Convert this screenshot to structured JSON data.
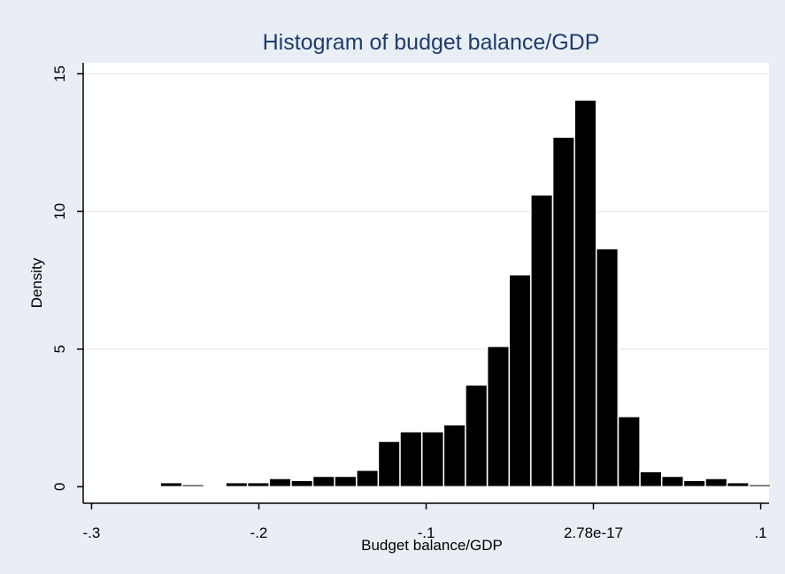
{
  "chart_data": {
    "type": "bar",
    "title": "Histogram of budget balance/GDP",
    "xlabel": "Budget balance/GDP",
    "ylabel": "Density",
    "xlim": [
      -0.305,
      0.105
    ],
    "ylim": [
      -0.6,
      15.4
    ],
    "x_ticks": [
      {
        "value": -0.3,
        "label": "-.3"
      },
      {
        "value": -0.2,
        "label": "-.2"
      },
      {
        "value": -0.1,
        "label": "-.1"
      },
      {
        "value": 0.0,
        "label": "2.78e-17"
      },
      {
        "value": 0.1,
        "label": ".1"
      }
    ],
    "y_ticks": [
      {
        "value": 0,
        "label": "0"
      },
      {
        "value": 5,
        "label": "5"
      },
      {
        "value": 10,
        "label": "10"
      },
      {
        "value": 15,
        "label": "15"
      }
    ],
    "grid": true,
    "legend": "none",
    "bin_width": 0.01303,
    "bins": [
      {
        "x_start": -0.2589,
        "density": 0.15
      },
      {
        "x_start": -0.2459,
        "density": 0.08
      },
      {
        "x_start": -0.2198,
        "density": 0.15
      },
      {
        "x_start": -0.2068,
        "density": 0.15
      },
      {
        "x_start": -0.1938,
        "density": 0.3
      },
      {
        "x_start": -0.1807,
        "density": 0.23
      },
      {
        "x_start": -0.1677,
        "density": 0.38
      },
      {
        "x_start": -0.1547,
        "density": 0.38
      },
      {
        "x_start": -0.1416,
        "density": 0.6
      },
      {
        "x_start": -0.1286,
        "density": 1.65
      },
      {
        "x_start": -0.1156,
        "density": 2.0
      },
      {
        "x_start": -0.1025,
        "density": 2.0
      },
      {
        "x_start": -0.0895,
        "density": 2.25
      },
      {
        "x_start": -0.0765,
        "density": 3.7
      },
      {
        "x_start": -0.0634,
        "density": 5.1
      },
      {
        "x_start": -0.0504,
        "density": 7.7
      },
      {
        "x_start": -0.0374,
        "density": 10.6
      },
      {
        "x_start": -0.0243,
        "density": 12.7
      },
      {
        "x_start": -0.0113,
        "density": 14.05
      },
      {
        "x_start": 0.0017,
        "density": 8.65
      },
      {
        "x_start": 0.0148,
        "density": 2.55
      },
      {
        "x_start": 0.0278,
        "density": 0.55
      },
      {
        "x_start": 0.0408,
        "density": 0.38
      },
      {
        "x_start": 0.0539,
        "density": 0.23
      },
      {
        "x_start": 0.0669,
        "density": 0.3
      },
      {
        "x_start": 0.0799,
        "density": 0.15
      },
      {
        "x_start": 0.093,
        "density": 0.08
      }
    ],
    "colors": {
      "background": "#e8eef3",
      "plot_area": "#ffffff",
      "bar_fill": "#000000",
      "bar_edge": "#ffffff",
      "gridline": "#e8eef3",
      "title": "#1f3c6e"
    }
  }
}
